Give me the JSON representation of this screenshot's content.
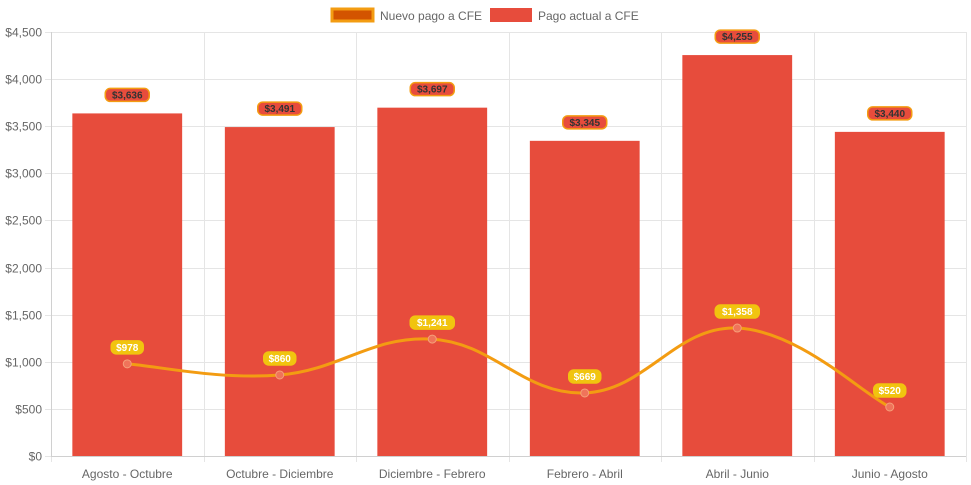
{
  "chart_data": {
    "type": "bar",
    "categories": [
      "Agosto - Octubre",
      "Octubre - Diciembre",
      "Diciembre - Febrero",
      "Febrero - Abril",
      "Abril - Junio",
      "Junio - Agosto"
    ],
    "series": [
      {
        "name": "Nuevo pago a CFE",
        "type": "line",
        "values": [
          978,
          860,
          1241,
          669,
          1358,
          520
        ],
        "labels": [
          "$978",
          "$860",
          "$1,241",
          "$669",
          "$1,358",
          "$520"
        ],
        "color": "#f39c12",
        "point_color": "#f0735a",
        "label_bg": "#f1c40f",
        "legend_fill": "#d35400",
        "legend_border": "#f39c12"
      },
      {
        "name": "Pago actual a CFE",
        "type": "bar",
        "values": [
          3636,
          3491,
          3697,
          3345,
          4255,
          3440
        ],
        "labels": [
          "$3,636",
          "$3,491",
          "$3,697",
          "$3,345",
          "$4,255",
          "$3,440"
        ],
        "color": "#e74c3c",
        "label_bg": "#e74c3c",
        "label_border": "#f39c12"
      }
    ],
    "ylim": [
      0,
      4500
    ],
    "yticks": [
      0,
      500,
      1000,
      1500,
      2000,
      2500,
      3000,
      3500,
      4000,
      4500
    ],
    "ytick_labels": [
      "$0",
      "$500",
      "$1,000",
      "$1,500",
      "$2,000",
      "$2,500",
      "$3,000",
      "$3,500",
      "$4,000",
      "$4,500"
    ],
    "grid": true,
    "legend_position": "top-center"
  }
}
